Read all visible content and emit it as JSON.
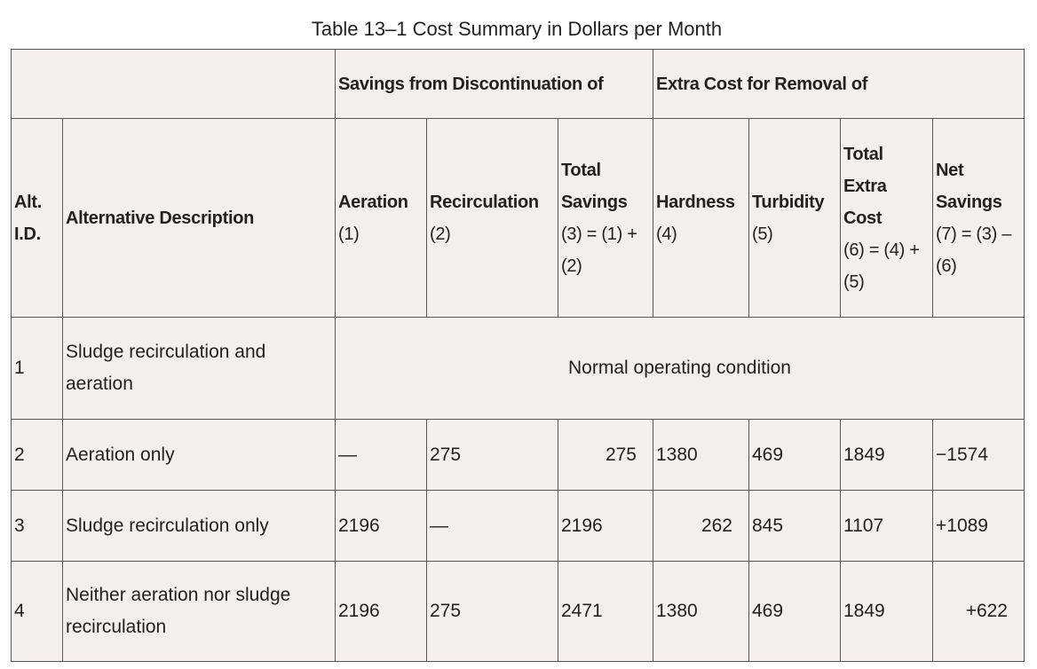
{
  "title": "Table 13–1 Cost Summary in Dollars per Month",
  "table": {
    "group_headers": [
      "Savings from Discontinuation of",
      "Extra Cost for Removal of"
    ],
    "columns": [
      {
        "label": "Alt. I.D."
      },
      {
        "label": "Alternative Description"
      },
      {
        "label": "Aeration",
        "note": "(1)"
      },
      {
        "label": "Recirculation",
        "note": "(2)"
      },
      {
        "label": "Total Savings",
        "note": "(3) = (1) + (2)"
      },
      {
        "label": "Hardness",
        "note": "(4)"
      },
      {
        "label": "Turbidity",
        "note": "(5)"
      },
      {
        "label": "Total Extra Cost",
        "note": "(6) = (4) + (5)"
      },
      {
        "label": "Net Savings",
        "note": "(7) = (3) – (6)"
      }
    ],
    "rows": [
      {
        "id": "1",
        "description": "Sludge recirculation and aeration",
        "note": "Normal operating condition"
      },
      {
        "id": "2",
        "description": "Aeration only",
        "values": [
          "—",
          "275",
          "275",
          "1380",
          "469",
          "1849",
          "−1574"
        ]
      },
      {
        "id": "3",
        "description": "Sludge recirculation only",
        "values": [
          "2196",
          "—",
          "2196",
          "262",
          "845",
          "1107",
          "+1089"
        ]
      },
      {
        "id": "4",
        "description": "Neither aeration nor sludge recirculation",
        "values": [
          "2196",
          "275",
          "2471",
          "1380",
          "469",
          "1849",
          "+622"
        ]
      }
    ]
  }
}
